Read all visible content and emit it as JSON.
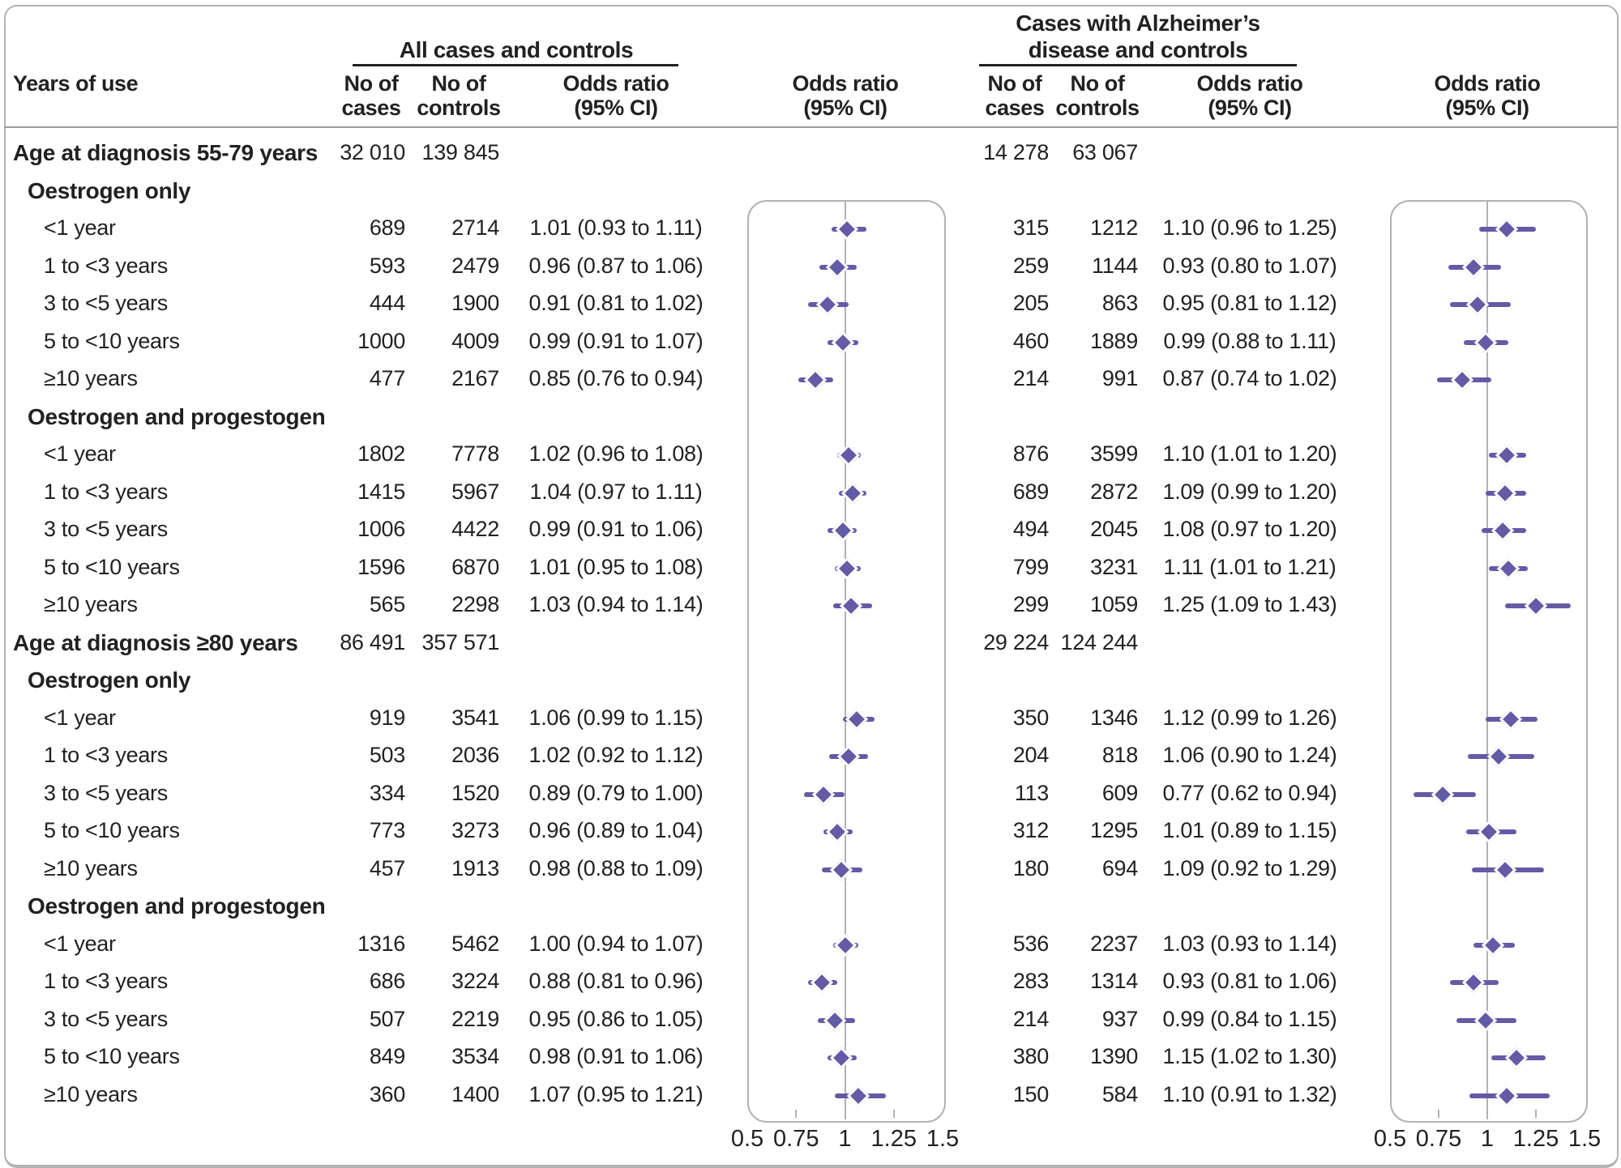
{
  "header": {
    "row_label": "Years of use",
    "left_group": "All cases and controls",
    "right_group_line1": "Cases with Alzheimer’s",
    "right_group_line2": "disease and controls",
    "no_of": "No of",
    "cases": "cases",
    "controls": "controls",
    "odds_ratio": "Odds ratio",
    "ci": "(95% CI)"
  },
  "colors": {
    "marker": "#655aa5",
    "text": "#232021",
    "grid": "#b2b2b4",
    "divider": "#9c9c9e",
    "underline": "#232021"
  },
  "chart_data": {
    "type": "forest",
    "panels": [
      "All cases and controls",
      "Cases with Alzheimer's disease and controls"
    ],
    "x_range": [
      0.5,
      1.5
    ],
    "x_ticks": [
      "0.5",
      "0.75",
      "1",
      "1.25",
      "1.5"
    ],
    "x_tick_values": [
      0.5,
      0.75,
      1,
      1.25,
      1.5
    ],
    "reference_line": 1,
    "rows": [
      {
        "kind": "section",
        "label": "Age at diagnosis 55-79 years",
        "all": {
          "cases": "32 010",
          "controls": "139 845"
        },
        "ad": {
          "cases": "14 278",
          "controls": "63 067"
        }
      },
      {
        "kind": "subhead",
        "label": "Oestrogen only"
      },
      {
        "kind": "data",
        "label": "<1 year",
        "all": {
          "cases": "689",
          "controls": "2714",
          "text": "1.01 (0.93 to 1.11)",
          "or": 1.01,
          "lo": 0.93,
          "hi": 1.11
        },
        "ad": {
          "cases": "315",
          "controls": "1212",
          "text": "1.10 (0.96 to 1.25)",
          "or": 1.1,
          "lo": 0.96,
          "hi": 1.25
        }
      },
      {
        "kind": "data",
        "label": "1 to <3 years",
        "all": {
          "cases": "593",
          "controls": "2479",
          "text": "0.96 (0.87 to 1.06)",
          "or": 0.96,
          "lo": 0.87,
          "hi": 1.06
        },
        "ad": {
          "cases": "259",
          "controls": "1144",
          "text": "0.93 (0.80 to 1.07)",
          "or": 0.93,
          "lo": 0.8,
          "hi": 1.07
        }
      },
      {
        "kind": "data",
        "label": "3 to <5 years",
        "all": {
          "cases": "444",
          "controls": "1900",
          "text": "0.91 (0.81 to 1.02)",
          "or": 0.91,
          "lo": 0.81,
          "hi": 1.02
        },
        "ad": {
          "cases": "205",
          "controls": "863",
          "text": "0.95 (0.81 to 1.12)",
          "or": 0.95,
          "lo": 0.81,
          "hi": 1.12
        }
      },
      {
        "kind": "data",
        "label": "5 to <10 years",
        "all": {
          "cases": "1000",
          "controls": "4009",
          "text": "0.99 (0.91 to 1.07)",
          "or": 0.99,
          "lo": 0.91,
          "hi": 1.07
        },
        "ad": {
          "cases": "460",
          "controls": "1889",
          "text": "0.99 (0.88 to 1.11)",
          "or": 0.99,
          "lo": 0.88,
          "hi": 1.11
        }
      },
      {
        "kind": "data",
        "label": "≥10 years",
        "all": {
          "cases": "477",
          "controls": "2167",
          "text": "0.85 (0.76 to 0.94)",
          "or": 0.85,
          "lo": 0.76,
          "hi": 0.94
        },
        "ad": {
          "cases": "214",
          "controls": "991",
          "text": "0.87 (0.74 to 1.02)",
          "or": 0.87,
          "lo": 0.74,
          "hi": 1.02
        }
      },
      {
        "kind": "subhead",
        "label": "Oestrogen and progestogen"
      },
      {
        "kind": "data",
        "label": "<1 year",
        "all": {
          "cases": "1802",
          "controls": "7778",
          "text": "1.02 (0.96 to 1.08)",
          "or": 1.02,
          "lo": 0.96,
          "hi": 1.08
        },
        "ad": {
          "cases": "876",
          "controls": "3599",
          "text": "1.10 (1.01 to 1.20)",
          "or": 1.1,
          "lo": 1.01,
          "hi": 1.2
        }
      },
      {
        "kind": "data",
        "label": "1 to <3 years",
        "all": {
          "cases": "1415",
          "controls": "5967",
          "text": "1.04 (0.97 to 1.11)",
          "or": 1.04,
          "lo": 0.97,
          "hi": 1.11
        },
        "ad": {
          "cases": "689",
          "controls": "2872",
          "text": "1.09 (0.99 to 1.20)",
          "or": 1.09,
          "lo": 0.99,
          "hi": 1.2
        }
      },
      {
        "kind": "data",
        "label": "3 to <5 years",
        "all": {
          "cases": "1006",
          "controls": "4422",
          "text": "0.99 (0.91 to 1.06)",
          "or": 0.99,
          "lo": 0.91,
          "hi": 1.06
        },
        "ad": {
          "cases": "494",
          "controls": "2045",
          "text": "1.08 (0.97 to 1.20)",
          "or": 1.08,
          "lo": 0.97,
          "hi": 1.2
        }
      },
      {
        "kind": "data",
        "label": "5 to <10 years",
        "all": {
          "cases": "1596",
          "controls": "6870",
          "text": "1.01 (0.95 to 1.08)",
          "or": 1.01,
          "lo": 0.95,
          "hi": 1.08
        },
        "ad": {
          "cases": "799",
          "controls": "3231",
          "text": "1.11 (1.01 to 1.21)",
          "or": 1.11,
          "lo": 1.01,
          "hi": 1.21
        }
      },
      {
        "kind": "data",
        "label": "≥10 years",
        "all": {
          "cases": "565",
          "controls": "2298",
          "text": "1.03 (0.94 to 1.14)",
          "or": 1.03,
          "lo": 0.94,
          "hi": 1.14
        },
        "ad": {
          "cases": "299",
          "controls": "1059",
          "text": "1.25 (1.09 to 1.43)",
          "or": 1.25,
          "lo": 1.09,
          "hi": 1.43
        }
      },
      {
        "kind": "section",
        "label": "Age at diagnosis ≥80 years",
        "all": {
          "cases": "86 491",
          "controls": "357 571"
        },
        "ad": {
          "cases": "29 224",
          "controls": "124 244"
        }
      },
      {
        "kind": "subhead",
        "label": "Oestrogen only"
      },
      {
        "kind": "data",
        "label": "<1 year",
        "all": {
          "cases": "919",
          "controls": "3541",
          "text": "1.06 (0.99 to 1.15)",
          "or": 1.06,
          "lo": 0.99,
          "hi": 1.15
        },
        "ad": {
          "cases": "350",
          "controls": "1346",
          "text": "1.12 (0.99 to 1.26)",
          "or": 1.12,
          "lo": 0.99,
          "hi": 1.26
        }
      },
      {
        "kind": "data",
        "label": "1 to <3 years",
        "all": {
          "cases": "503",
          "controls": "2036",
          "text": "1.02 (0.92 to 1.12)",
          "or": 1.02,
          "lo": 0.92,
          "hi": 1.12
        },
        "ad": {
          "cases": "204",
          "controls": "818",
          "text": "1.06 (0.90 to 1.24)",
          "or": 1.06,
          "lo": 0.9,
          "hi": 1.24
        }
      },
      {
        "kind": "data",
        "label": "3 to <5 years",
        "all": {
          "cases": "334",
          "controls": "1520",
          "text": "0.89 (0.79 to 1.00)",
          "or": 0.89,
          "lo": 0.79,
          "hi": 1.0
        },
        "ad": {
          "cases": "113",
          "controls": "609",
          "text": "0.77 (0.62 to 0.94)",
          "or": 0.77,
          "lo": 0.62,
          "hi": 0.94
        }
      },
      {
        "kind": "data",
        "label": "5 to <10 years",
        "all": {
          "cases": "773",
          "controls": "3273",
          "text": "0.96 (0.89 to 1.04)",
          "or": 0.96,
          "lo": 0.89,
          "hi": 1.04
        },
        "ad": {
          "cases": "312",
          "controls": "1295",
          "text": "1.01 (0.89 to 1.15)",
          "or": 1.01,
          "lo": 0.89,
          "hi": 1.15
        }
      },
      {
        "kind": "data",
        "label": "≥10 years",
        "all": {
          "cases": "457",
          "controls": "1913",
          "text": "0.98 (0.88 to 1.09)",
          "or": 0.98,
          "lo": 0.88,
          "hi": 1.09
        },
        "ad": {
          "cases": "180",
          "controls": "694",
          "text": "1.09 (0.92 to 1.29)",
          "or": 1.09,
          "lo": 0.92,
          "hi": 1.29
        }
      },
      {
        "kind": "subhead",
        "label": "Oestrogen and progestogen"
      },
      {
        "kind": "data",
        "label": "<1 year",
        "all": {
          "cases": "1316",
          "controls": "5462",
          "text": "1.00 (0.94 to 1.07)",
          "or": 1.0,
          "lo": 0.94,
          "hi": 1.07
        },
        "ad": {
          "cases": "536",
          "controls": "2237",
          "text": "1.03 (0.93 to 1.14)",
          "or": 1.03,
          "lo": 0.93,
          "hi": 1.14
        }
      },
      {
        "kind": "data",
        "label": "1 to <3 years",
        "all": {
          "cases": "686",
          "controls": "3224",
          "text": "0.88 (0.81 to 0.96)",
          "or": 0.88,
          "lo": 0.81,
          "hi": 0.96
        },
        "ad": {
          "cases": "283",
          "controls": "1314",
          "text": "0.93 (0.81 to 1.06)",
          "or": 0.93,
          "lo": 0.81,
          "hi": 1.06
        }
      },
      {
        "kind": "data",
        "label": "3 to <5 years",
        "all": {
          "cases": "507",
          "controls": "2219",
          "text": "0.95 (0.86 to 1.05)",
          "or": 0.95,
          "lo": 0.86,
          "hi": 1.05
        },
        "ad": {
          "cases": "214",
          "controls": "937",
          "text": "0.99 (0.84 to 1.15)",
          "or": 0.99,
          "lo": 0.84,
          "hi": 1.15
        }
      },
      {
        "kind": "data",
        "label": "5 to <10 years",
        "all": {
          "cases": "849",
          "controls": "3534",
          "text": "0.98 (0.91 to 1.06)",
          "or": 0.98,
          "lo": 0.91,
          "hi": 1.06
        },
        "ad": {
          "cases": "380",
          "controls": "1390",
          "text": "1.15 (1.02 to 1.30)",
          "or": 1.15,
          "lo": 1.02,
          "hi": 1.3
        }
      },
      {
        "kind": "data",
        "label": "≥10 years",
        "all": {
          "cases": "360",
          "controls": "1400",
          "text": "1.07 (0.95 to 1.21)",
          "or": 1.07,
          "lo": 0.95,
          "hi": 1.21
        },
        "ad": {
          "cases": "150",
          "controls": "584",
          "text": "1.10 (0.91 to 1.32)",
          "or": 1.1,
          "lo": 0.91,
          "hi": 1.32
        }
      }
    ]
  }
}
